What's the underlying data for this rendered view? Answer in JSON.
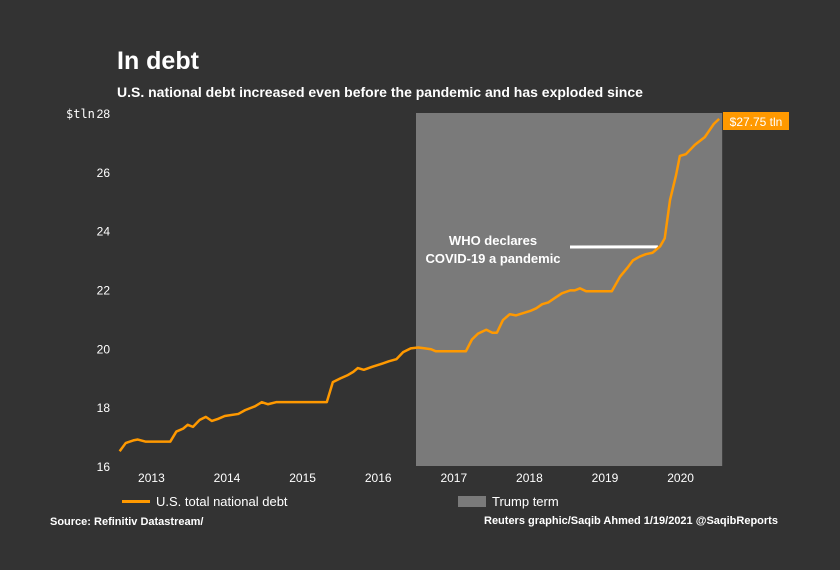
{
  "title": "In debt",
  "subtitle": "U.S. national debt increased even before the pandemic and has exploded since",
  "source": "Source: Refinitiv Datastream/",
  "credit": "Reuters graphic/Saqib Ahmed 1/19/2021 @SaqibReports",
  "chart_data": {
    "type": "line",
    "ylabel": "$tln",
    "ylim": [
      16,
      28
    ],
    "yticks": [
      16,
      18,
      20,
      22,
      24,
      26,
      28
    ],
    "xlim": [
      2013.0,
      2021.05
    ],
    "xtick_labels": [
      "2013",
      "2014",
      "2015",
      "2016",
      "2017",
      "2018",
      "2019",
      "2020"
    ],
    "grid": false,
    "legend_placement": "bottom",
    "colors": {
      "line": "#ff9900",
      "shade": "#7a7a7a",
      "background": "#333333"
    },
    "series": [
      {
        "name": "U.S. total national debt",
        "x": [
          2013.08,
          2013.16,
          2013.26,
          2013.32,
          2013.42,
          2013.75,
          2013.83,
          2013.92,
          2013.98,
          2014.05,
          2014.14,
          2014.22,
          2014.3,
          2014.38,
          2014.47,
          2014.65,
          2014.74,
          2014.87,
          2014.96,
          2015.04,
          2015.15,
          2015.82,
          2015.9,
          2016.0,
          2016.09,
          2016.17,
          2016.23,
          2016.31,
          2016.42,
          2016.53,
          2016.64,
          2016.74,
          2016.83,
          2016.93,
          2017.03,
          2017.12,
          2017.2,
          2017.26,
          2017.66,
          2017.74,
          2017.82,
          2017.93,
          2018.01,
          2018.07,
          2018.15,
          2018.24,
          2018.32,
          2018.42,
          2018.51,
          2018.59,
          2018.67,
          2018.75,
          2018.83,
          2018.93,
          2019.04,
          2019.1,
          2019.17,
          2019.25,
          2019.59,
          2019.7,
          2019.8,
          2019.87,
          2019.96,
          2020.04,
          2020.13,
          2020.23,
          2020.29,
          2020.36,
          2020.44,
          2020.49,
          2020.57,
          2020.69,
          2020.82,
          2020.94,
          2021.01
        ],
        "y": [
          16.5,
          16.78,
          16.87,
          16.9,
          16.83,
          16.83,
          17.17,
          17.27,
          17.4,
          17.33,
          17.57,
          17.67,
          17.53,
          17.6,
          17.7,
          17.77,
          17.9,
          18.03,
          18.17,
          18.1,
          18.17,
          18.17,
          18.85,
          18.98,
          19.08,
          19.2,
          19.33,
          19.27,
          19.37,
          19.46,
          19.56,
          19.63,
          19.87,
          20.0,
          20.03,
          20.0,
          19.97,
          19.9,
          19.9,
          20.3,
          20.5,
          20.63,
          20.53,
          20.53,
          20.96,
          21.16,
          21.12,
          21.2,
          21.27,
          21.36,
          21.5,
          21.56,
          21.7,
          21.87,
          21.97,
          21.97,
          22.04,
          21.94,
          21.94,
          22.44,
          22.75,
          22.99,
          23.12,
          23.2,
          23.25,
          23.47,
          23.74,
          25.04,
          25.89,
          26.54,
          26.6,
          26.92,
          27.18,
          27.63,
          27.8
        ]
      }
    ],
    "shaded_region": {
      "name": "Trump term",
      "x": [
        2017.0,
        2021.05
      ]
    },
    "end_label": "$27.75 tln",
    "annotation": {
      "line1": "WHO declares",
      "line2": "COVID-19 a pandemic",
      "x": 2020.2,
      "y": 23.45
    }
  }
}
